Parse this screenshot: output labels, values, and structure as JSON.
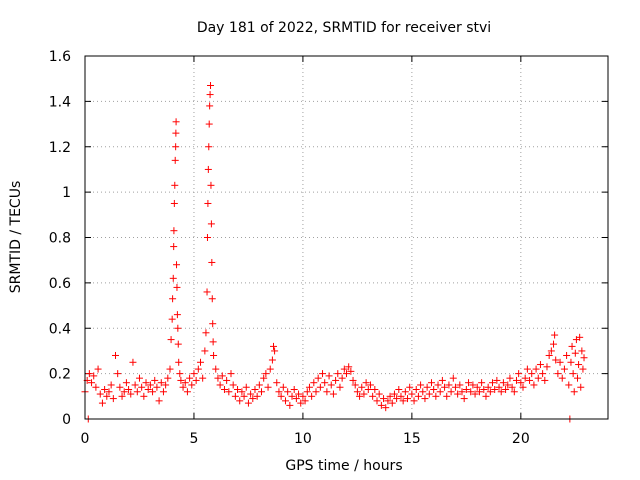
{
  "chart_data": {
    "type": "scatter",
    "title": "Day 181 of 2022, SRMTID for receiver stvi",
    "xlabel": "GPS time / hours",
    "ylabel": "SRMTID / TECUs",
    "xlim": [
      0,
      24
    ],
    "ylim": [
      0,
      1.6
    ],
    "xticks": [
      0,
      5,
      10,
      15,
      20
    ],
    "xtick_labels": [
      "0",
      "5",
      "10",
      "15",
      "20"
    ],
    "yticks": [
      0,
      0.2,
      0.4,
      0.6,
      0.8,
      1.0,
      1.2,
      1.4,
      1.6
    ],
    "ytick_labels": [
      "0",
      "0.2",
      "0.4",
      "0.6",
      "0.8",
      "1",
      "1.2",
      "1.4",
      "1.6"
    ],
    "grid": true,
    "marker": "+",
    "color": "#ff0000",
    "series": [
      {
        "name": "SRMTID",
        "points": [
          [
            0.0,
            0.12
          ],
          [
            0.1,
            0.17
          ],
          [
            0.15,
            0.0
          ],
          [
            0.2,
            0.2
          ],
          [
            0.3,
            0.16
          ],
          [
            0.4,
            0.19
          ],
          [
            0.5,
            0.14
          ],
          [
            0.6,
            0.22
          ],
          [
            0.7,
            0.11
          ],
          [
            0.8,
            0.07
          ],
          [
            0.9,
            0.13
          ],
          [
            1.0,
            0.1
          ],
          [
            1.1,
            0.12
          ],
          [
            1.2,
            0.15
          ],
          [
            1.3,
            0.09
          ],
          [
            1.4,
            0.28
          ],
          [
            1.5,
            0.2
          ],
          [
            1.6,
            0.14
          ],
          [
            1.7,
            0.1
          ],
          [
            1.8,
            0.12
          ],
          [
            1.9,
            0.16
          ],
          [
            2.0,
            0.13
          ],
          [
            2.1,
            0.11
          ],
          [
            2.2,
            0.25
          ],
          [
            2.3,
            0.15
          ],
          [
            2.4,
            0.12
          ],
          [
            2.5,
            0.18
          ],
          [
            2.6,
            0.14
          ],
          [
            2.7,
            0.1
          ],
          [
            2.8,
            0.16
          ],
          [
            2.9,
            0.13
          ],
          [
            3.0,
            0.15
          ],
          [
            3.1,
            0.12
          ],
          [
            3.2,
            0.17
          ],
          [
            3.3,
            0.14
          ],
          [
            3.4,
            0.08
          ],
          [
            3.5,
            0.16
          ],
          [
            3.6,
            0.12
          ],
          [
            3.7,
            0.15
          ],
          [
            3.8,
            0.18
          ],
          [
            3.9,
            0.22
          ],
          [
            3.95,
            0.35
          ],
          [
            4.0,
            0.44
          ],
          [
            4.02,
            0.53
          ],
          [
            4.05,
            0.62
          ],
          [
            4.07,
            0.76
          ],
          [
            4.08,
            0.83
          ],
          [
            4.1,
            0.95
          ],
          [
            4.12,
            1.03
          ],
          [
            4.14,
            1.14
          ],
          [
            4.16,
            1.2
          ],
          [
            4.17,
            1.26
          ],
          [
            4.18,
            1.31
          ],
          [
            4.2,
            0.68
          ],
          [
            4.22,
            0.58
          ],
          [
            4.24,
            0.46
          ],
          [
            4.26,
            0.4
          ],
          [
            4.28,
            0.33
          ],
          [
            4.3,
            0.25
          ],
          [
            4.35,
            0.2
          ],
          [
            4.4,
            0.17
          ],
          [
            4.5,
            0.14
          ],
          [
            4.6,
            0.16
          ],
          [
            4.7,
            0.12
          ],
          [
            4.8,
            0.18
          ],
          [
            4.9,
            0.15
          ],
          [
            5.0,
            0.2
          ],
          [
            5.1,
            0.17
          ],
          [
            5.2,
            0.22
          ],
          [
            5.3,
            0.25
          ],
          [
            5.4,
            0.18
          ],
          [
            5.5,
            0.3
          ],
          [
            5.55,
            0.38
          ],
          [
            5.6,
            0.56
          ],
          [
            5.62,
            0.8
          ],
          [
            5.64,
            0.95
          ],
          [
            5.66,
            1.1
          ],
          [
            5.68,
            1.2
          ],
          [
            5.7,
            1.3
          ],
          [
            5.72,
            1.38
          ],
          [
            5.74,
            1.43
          ],
          [
            5.76,
            1.47
          ],
          [
            5.78,
            1.03
          ],
          [
            5.8,
            0.86
          ],
          [
            5.82,
            0.69
          ],
          [
            5.84,
            0.53
          ],
          [
            5.86,
            0.42
          ],
          [
            5.88,
            0.34
          ],
          [
            5.9,
            0.28
          ],
          [
            6.0,
            0.22
          ],
          [
            6.1,
            0.18
          ],
          [
            6.2,
            0.15
          ],
          [
            6.3,
            0.19
          ],
          [
            6.4,
            0.13
          ],
          [
            6.5,
            0.17
          ],
          [
            6.6,
            0.12
          ],
          [
            6.7,
            0.2
          ],
          [
            6.8,
            0.15
          ],
          [
            6.9,
            0.1
          ],
          [
            7.0,
            0.13
          ],
          [
            7.1,
            0.08
          ],
          [
            7.2,
            0.12
          ],
          [
            7.3,
            0.1
          ],
          [
            7.4,
            0.14
          ],
          [
            7.5,
            0.07
          ],
          [
            7.6,
            0.11
          ],
          [
            7.7,
            0.09
          ],
          [
            7.8,
            0.13
          ],
          [
            7.9,
            0.1
          ],
          [
            8.0,
            0.15
          ],
          [
            8.1,
            0.12
          ],
          [
            8.2,
            0.18
          ],
          [
            8.3,
            0.2
          ],
          [
            8.4,
            0.14
          ],
          [
            8.5,
            0.22
          ],
          [
            8.6,
            0.26
          ],
          [
            8.65,
            0.32
          ],
          [
            8.7,
            0.3
          ],
          [
            8.8,
            0.16
          ],
          [
            8.9,
            0.12
          ],
          [
            9.0,
            0.1
          ],
          [
            9.1,
            0.14
          ],
          [
            9.2,
            0.08
          ],
          [
            9.3,
            0.12
          ],
          [
            9.4,
            0.06
          ],
          [
            9.5,
            0.1
          ],
          [
            9.6,
            0.13
          ],
          [
            9.7,
            0.09
          ],
          [
            9.8,
            0.11
          ],
          [
            9.9,
            0.07
          ],
          [
            10.0,
            0.1
          ],
          [
            10.1,
            0.08
          ],
          [
            10.2,
            0.12
          ],
          [
            10.3,
            0.14
          ],
          [
            10.4,
            0.1
          ],
          [
            10.5,
            0.16
          ],
          [
            10.6,
            0.12
          ],
          [
            10.7,
            0.18
          ],
          [
            10.8,
            0.14
          ],
          [
            10.9,
            0.2
          ],
          [
            11.0,
            0.16
          ],
          [
            11.1,
            0.12
          ],
          [
            11.2,
            0.19
          ],
          [
            11.3,
            0.15
          ],
          [
            11.4,
            0.11
          ],
          [
            11.5,
            0.17
          ],
          [
            11.6,
            0.2
          ],
          [
            11.7,
            0.14
          ],
          [
            11.8,
            0.18
          ],
          [
            11.9,
            0.22
          ],
          [
            12.0,
            0.2
          ],
          [
            12.1,
            0.23
          ],
          [
            12.2,
            0.21
          ],
          [
            12.3,
            0.17
          ],
          [
            12.4,
            0.15
          ],
          [
            12.5,
            0.12
          ],
          [
            12.6,
            0.1
          ],
          [
            12.7,
            0.14
          ],
          [
            12.8,
            0.11
          ],
          [
            12.9,
            0.16
          ],
          [
            13.0,
            0.13
          ],
          [
            13.1,
            0.15
          ],
          [
            13.2,
            0.1
          ],
          [
            13.3,
            0.13
          ],
          [
            13.4,
            0.08
          ],
          [
            13.5,
            0.11
          ],
          [
            13.6,
            0.06
          ],
          [
            13.7,
            0.09
          ],
          [
            13.8,
            0.05
          ],
          [
            13.9,
            0.08
          ],
          [
            14.0,
            0.1
          ],
          [
            14.1,
            0.07
          ],
          [
            14.2,
            0.11
          ],
          [
            14.3,
            0.09
          ],
          [
            14.4,
            0.13
          ],
          [
            14.5,
            0.1
          ],
          [
            14.6,
            0.08
          ],
          [
            14.7,
            0.12
          ],
          [
            14.8,
            0.09
          ],
          [
            14.9,
            0.14
          ],
          [
            15.0,
            0.11
          ],
          [
            15.1,
            0.08
          ],
          [
            15.2,
            0.13
          ],
          [
            15.3,
            0.1
          ],
          [
            15.4,
            0.15
          ],
          [
            15.5,
            0.12
          ],
          [
            15.6,
            0.09
          ],
          [
            15.7,
            0.14
          ],
          [
            15.8,
            0.11
          ],
          [
            15.9,
            0.16
          ],
          [
            16.0,
            0.13
          ],
          [
            16.1,
            0.1
          ],
          [
            16.2,
            0.15
          ],
          [
            16.3,
            0.12
          ],
          [
            16.4,
            0.17
          ],
          [
            16.5,
            0.14
          ],
          [
            16.6,
            0.1
          ],
          [
            16.7,
            0.15
          ],
          [
            16.8,
            0.12
          ],
          [
            16.9,
            0.18
          ],
          [
            17.0,
            0.14
          ],
          [
            17.1,
            0.11
          ],
          [
            17.2,
            0.15
          ],
          [
            17.3,
            0.12
          ],
          [
            17.4,
            0.09
          ],
          [
            17.5,
            0.13
          ],
          [
            17.6,
            0.16
          ],
          [
            17.7,
            0.12
          ],
          [
            17.8,
            0.15
          ],
          [
            17.9,
            0.11
          ],
          [
            18.0,
            0.14
          ],
          [
            18.1,
            0.12
          ],
          [
            18.2,
            0.16
          ],
          [
            18.3,
            0.13
          ],
          [
            18.4,
            0.1
          ],
          [
            18.5,
            0.14
          ],
          [
            18.6,
            0.12
          ],
          [
            18.7,
            0.16
          ],
          [
            18.8,
            0.13
          ],
          [
            18.9,
            0.17
          ],
          [
            19.0,
            0.14
          ],
          [
            19.1,
            0.12
          ],
          [
            19.2,
            0.16
          ],
          [
            19.3,
            0.13
          ],
          [
            19.4,
            0.15
          ],
          [
            19.5,
            0.18
          ],
          [
            19.6,
            0.14
          ],
          [
            19.7,
            0.12
          ],
          [
            19.8,
            0.17
          ],
          [
            19.9,
            0.2
          ],
          [
            20.0,
            0.16
          ],
          [
            20.1,
            0.14
          ],
          [
            20.2,
            0.18
          ],
          [
            20.3,
            0.22
          ],
          [
            20.4,
            0.17
          ],
          [
            20.5,
            0.2
          ],
          [
            20.6,
            0.15
          ],
          [
            20.7,
            0.22
          ],
          [
            20.8,
            0.18
          ],
          [
            20.9,
            0.24
          ],
          [
            21.0,
            0.2
          ],
          [
            21.1,
            0.17
          ],
          [
            21.2,
            0.23
          ],
          [
            21.3,
            0.28
          ],
          [
            21.4,
            0.3
          ],
          [
            21.5,
            0.33
          ],
          [
            21.55,
            0.37
          ],
          [
            21.6,
            0.26
          ],
          [
            21.7,
            0.2
          ],
          [
            21.8,
            0.25
          ],
          [
            21.9,
            0.18
          ],
          [
            22.0,
            0.22
          ],
          [
            22.1,
            0.28
          ],
          [
            22.2,
            0.15
          ],
          [
            22.25,
            0.0
          ],
          [
            22.3,
            0.25
          ],
          [
            22.35,
            0.32
          ],
          [
            22.4,
            0.2
          ],
          [
            22.45,
            0.12
          ],
          [
            22.5,
            0.29
          ],
          [
            22.55,
            0.35
          ],
          [
            22.6,
            0.18
          ],
          [
            22.65,
            0.24
          ],
          [
            22.7,
            0.36
          ],
          [
            22.75,
            0.14
          ],
          [
            22.8,
            0.3
          ],
          [
            22.85,
            0.22
          ],
          [
            22.9,
            0.27
          ]
        ]
      }
    ]
  }
}
